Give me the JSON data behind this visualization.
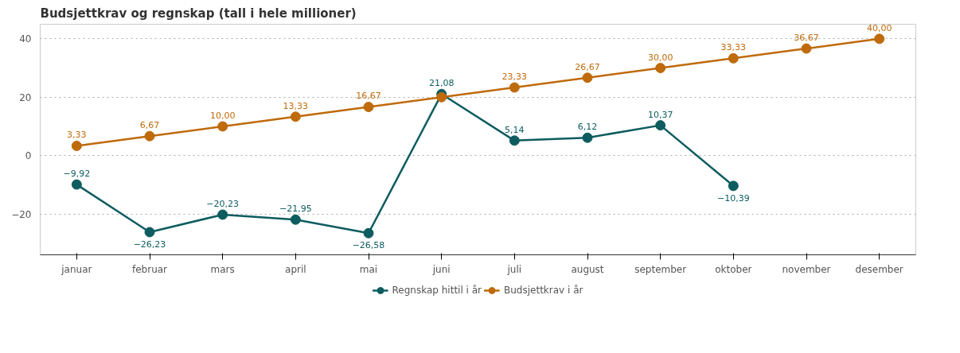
{
  "chart_data": {
    "type": "line",
    "title": "Budsjettkrav og regnskap (tall i hele millioner)",
    "categories": [
      "januar",
      "februar",
      "mars",
      "april",
      "mai",
      "juni",
      "juli",
      "august",
      "september",
      "oktober",
      "november",
      "desember"
    ],
    "series": [
      {
        "name": "Regnskap hittil i år",
        "color": "#0d5c60",
        "values": [
          -9.92,
          -26.23,
          -20.23,
          -21.95,
          -26.58,
          21.08,
          5.14,
          6.12,
          10.37,
          -10.39,
          null,
          null
        ],
        "value_labels": [
          "−9,92",
          "−26,23",
          "−20,23",
          "−21,95",
          "−26,58",
          "21,08",
          "5,14",
          "6,12",
          "10,37",
          "−10,39",
          null,
          null
        ]
      },
      {
        "name": "Budsjettkrav i år",
        "color": "#bf6a0b",
        "values": [
          3.33,
          6.67,
          10.0,
          13.33,
          16.67,
          20.0,
          23.33,
          26.67,
          30.0,
          33.33,
          36.67,
          40.0
        ],
        "value_labels": [
          "3,33",
          "6,67",
          "10,00",
          "13,33",
          "16,67",
          null,
          "23,33",
          "26,67",
          "30,00",
          "33,33",
          "36,67",
          "40,00"
        ]
      }
    ],
    "ylim": [
      -34,
      45
    ],
    "yticks": [
      {
        "value": -20,
        "label": "−20"
      },
      0,
      20,
      40
    ],
    "grid": "y",
    "legend": "bottom",
    "marker": "circle",
    "line_style": "solid"
  }
}
